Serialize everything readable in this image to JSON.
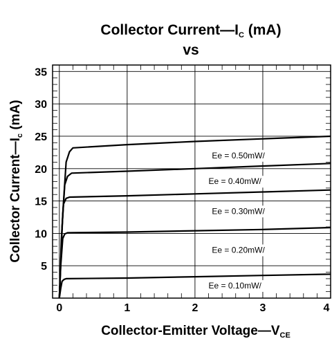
{
  "chart_data": {
    "type": "line",
    "title": "Collector Current—I",
    "title_sub": "C",
    "title_unit": " (mA)",
    "subtitle": "vs",
    "xlabel": "Collector-Emitter Voltage—V",
    "xlabel_sub": "CE",
    "ylabel": "Collector Current—I",
    "ylabel_sub": "c",
    "ylabel_unit": " (mA)",
    "xlim": [
      -0.1,
      4.0
    ],
    "ylim": [
      0,
      36
    ],
    "x_ticks": [
      "0",
      "1",
      "2",
      "3",
      "4"
    ],
    "y_ticks": [
      "5",
      "10",
      "15",
      "20",
      "25",
      "30",
      "35"
    ],
    "grid": true,
    "series": [
      {
        "name": "Ee = 0.50mW/",
        "x": [
          0,
          0.05,
          0.1,
          0.15,
          0.2,
          1,
          2,
          3,
          4
        ],
        "values": [
          0,
          13,
          21,
          22.6,
          23.2,
          23.7,
          24.2,
          24.6,
          25.0
        ]
      },
      {
        "name": "Ee = 0.40mW/",
        "x": [
          0,
          0.04,
          0.08,
          0.12,
          0.18,
          1,
          2,
          3,
          4
        ],
        "values": [
          0,
          11,
          17.5,
          18.8,
          19.3,
          19.6,
          20.0,
          20.4,
          20.8
        ]
      },
      {
        "name": "Ee = 0.30mW/",
        "x": [
          0,
          0.03,
          0.06,
          0.1,
          0.15,
          1,
          2,
          3,
          4
        ],
        "values": [
          0,
          9,
          14.5,
          15.4,
          15.6,
          15.8,
          16.1,
          16.4,
          16.7
        ]
      },
      {
        "name": "Ee = 0.20mW/",
        "x": [
          0,
          0.02,
          0.05,
          0.08,
          0.12,
          1,
          2,
          3,
          4
        ],
        "values": [
          0,
          5,
          9.2,
          9.9,
          10.1,
          10.2,
          10.4,
          10.6,
          10.9
        ]
      },
      {
        "name": "Ee = 0.10mW/",
        "x": [
          0,
          0.02,
          0.04,
          0.07,
          0.1,
          1,
          2,
          3,
          4
        ],
        "values": [
          0,
          1.5,
          2.6,
          2.9,
          3.0,
          3.1,
          3.3,
          3.5,
          3.7
        ]
      }
    ],
    "curve_label_positions": [
      {
        "x": 2.25,
        "y": 21.6
      },
      {
        "x": 2.2,
        "y": 17.6
      },
      {
        "x": 2.25,
        "y": 13.0
      },
      {
        "x": 2.25,
        "y": 7.0
      },
      {
        "x": 2.2,
        "y": 1.5
      }
    ],
    "colors": {
      "line": "#000000",
      "grid": "#000000",
      "background": "#ffffff"
    }
  }
}
